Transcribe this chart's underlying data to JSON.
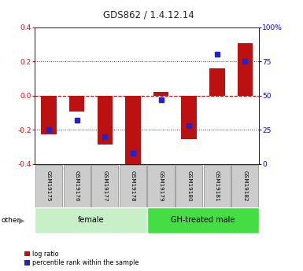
{
  "title": "GDS862 / 1.4.12.14",
  "samples": [
    "GSM19175",
    "GSM19176",
    "GSM19177",
    "GSM19178",
    "GSM19179",
    "GSM19180",
    "GSM19181",
    "GSM19182"
  ],
  "log_ratio": [
    -0.225,
    -0.095,
    -0.285,
    -0.41,
    0.02,
    -0.255,
    0.16,
    0.305
  ],
  "percentile_rank": [
    25,
    32,
    20,
    8,
    47,
    28,
    80,
    75
  ],
  "groups": [
    {
      "label": "female",
      "start": 0,
      "end": 4,
      "color": "#c8f0c8"
    },
    {
      "label": "GH-treated male",
      "start": 4,
      "end": 8,
      "color": "#44dd44"
    }
  ],
  "ylim_left": [
    -0.4,
    0.4
  ],
  "ylim_right": [
    0,
    100
  ],
  "yticks_left": [
    -0.4,
    -0.2,
    0.0,
    0.2,
    0.4
  ],
  "yticks_right": [
    0,
    25,
    50,
    75,
    100
  ],
  "bar_color": "#bb1111",
  "dot_color": "#2222cc",
  "zero_line_color": "#dd0000",
  "grid_color": "#333333",
  "label_box_color": "#cccccc",
  "label_box_edge": "#888888"
}
